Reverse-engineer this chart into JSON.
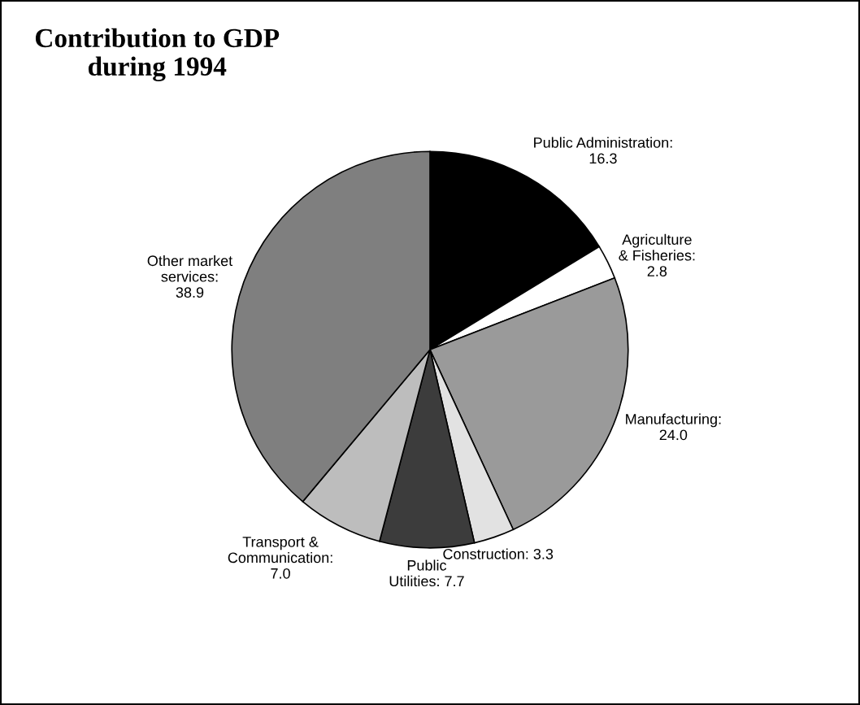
{
  "chart_data": {
    "type": "pie",
    "title": "Contribution to GDP\nduring 1994",
    "categories": [
      "Public Administration:\n16.3",
      "Agriculture\n& Fisheries:\n2.8",
      "Manufacturing:\n24.0",
      "Construction: 3.3",
      "Public\nUtilities: 7.7",
      "Transport &\nCommunication:\n7.0",
      "Other market\nservices:\n38.9"
    ],
    "values": [
      16.3,
      2.8,
      24.0,
      3.3,
      7.7,
      7.0,
      38.9
    ],
    "colors": [
      "#000000",
      "#ffffff",
      "#9a9a9a",
      "#e2e2e2",
      "#3c3c3c",
      "#bdbdbd",
      "#7f7f7f"
    ]
  }
}
